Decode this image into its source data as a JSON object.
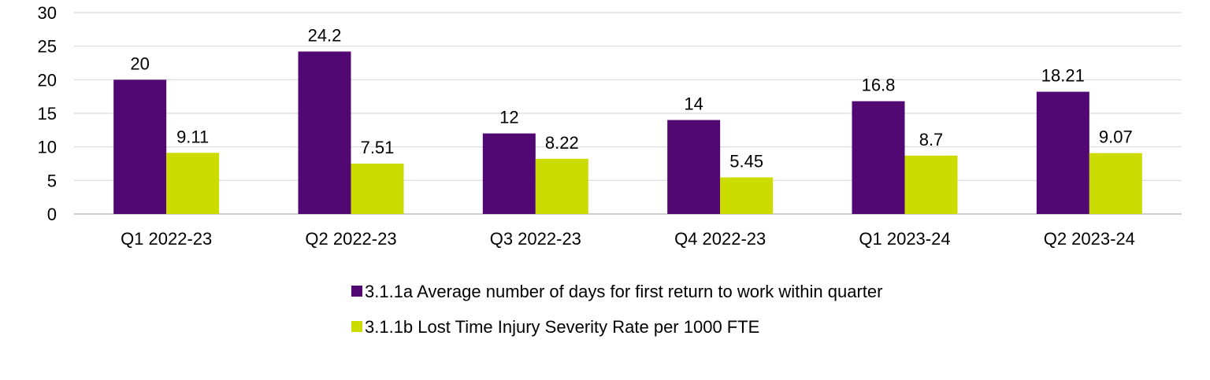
{
  "chart_data": {
    "type": "bar",
    "categories": [
      "Q1 2022-23",
      "Q2 2022-23",
      "Q3 2022-23",
      "Q4 2022-23",
      "Q1 2023-24",
      "Q2 2023-24"
    ],
    "series": [
      {
        "name": "3.1.1a Average number of days for first return to work within quarter",
        "values": [
          20,
          24.2,
          12,
          14,
          16.8,
          18.21
        ],
        "labels": [
          "20",
          "24.2",
          "12",
          "14",
          "16.8",
          "18.21"
        ],
        "color": "#520873"
      },
      {
        "name": "3.1.1b Lost Time Injury Severity Rate per 1000 FTE",
        "values": [
          9.11,
          7.51,
          8.22,
          5.45,
          8.7,
          9.07
        ],
        "labels": [
          "9.11",
          "7.51",
          "8.22",
          "5.45",
          "8.7",
          "9.07"
        ],
        "color": "#cddc00"
      }
    ],
    "ylim": [
      0,
      30
    ],
    "yticks": [
      0,
      5,
      10,
      15,
      20,
      25,
      30
    ],
    "grid": true,
    "gridline_color": "#d9d9d9",
    "legend_position": "bottom"
  }
}
